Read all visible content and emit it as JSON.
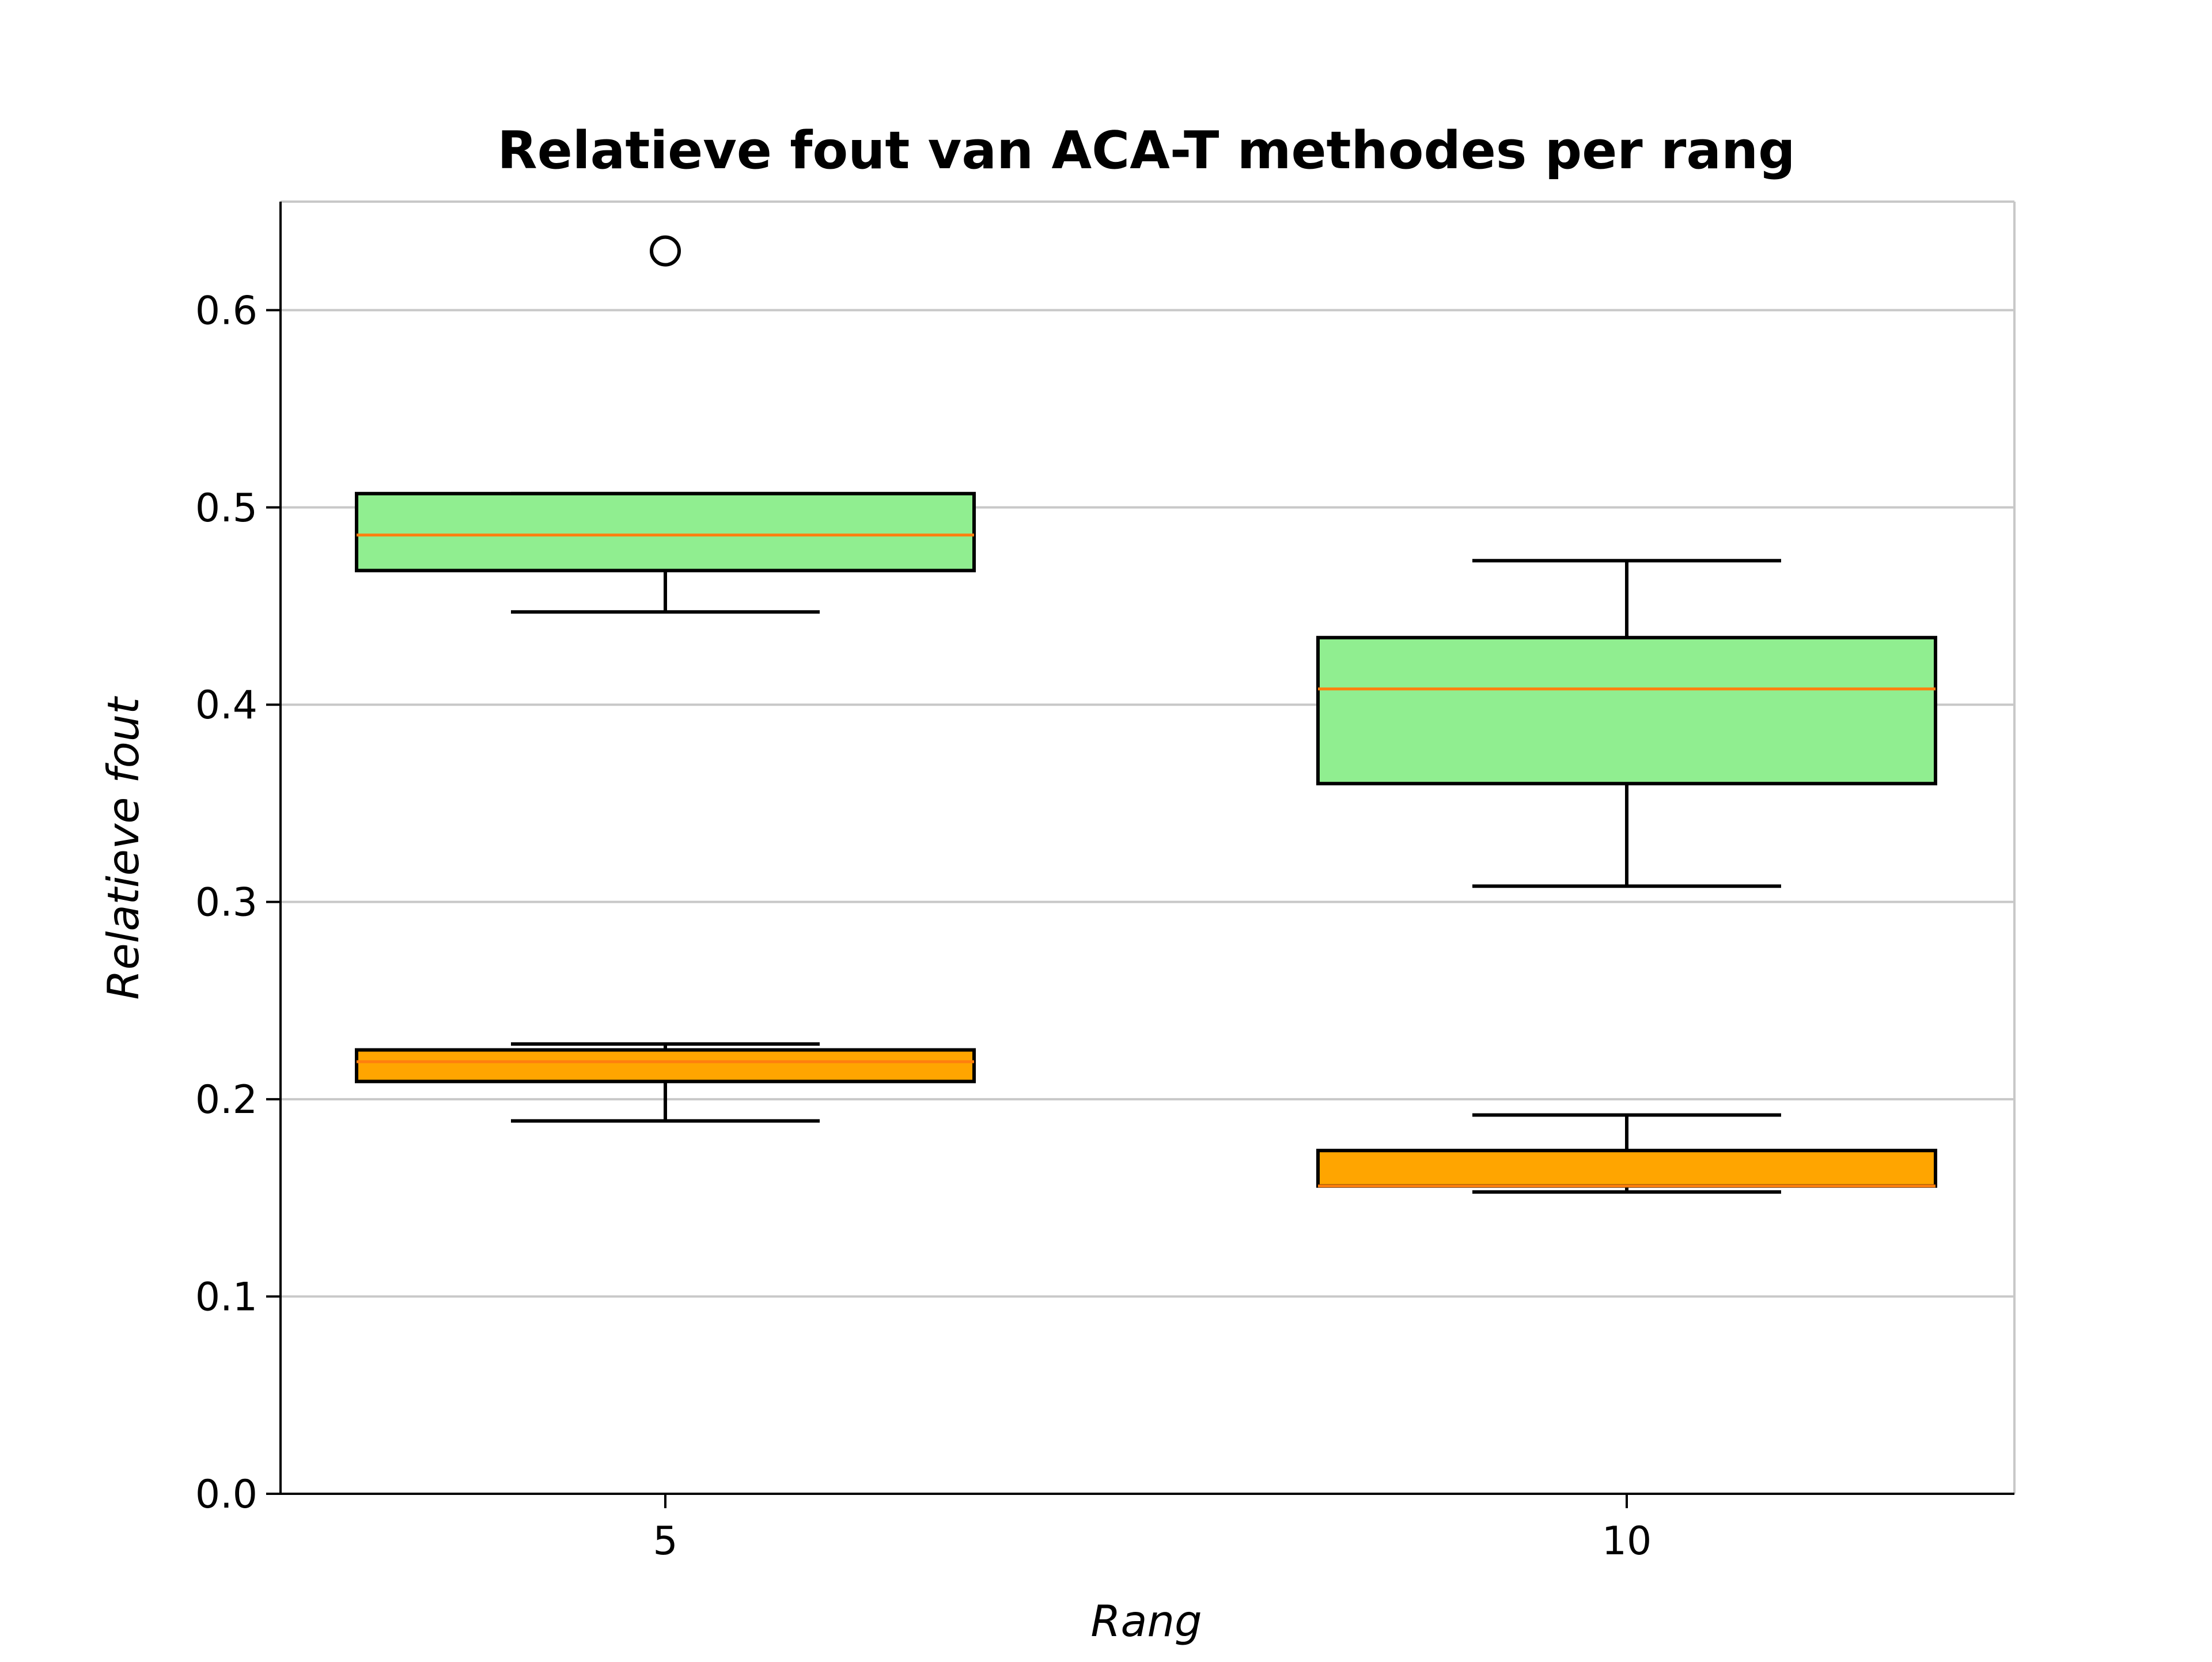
{
  "chart_data": {
    "type": "boxplot",
    "title": "Relatieve fout van ACA-T methodes per rang",
    "xlabel": "Rang",
    "ylabel": "Relatieve fout",
    "categories": [
      "5",
      "10"
    ],
    "ylim": [
      0.0,
      0.655
    ],
    "yticks": [
      "0.0",
      "0.1",
      "0.2",
      "0.3",
      "0.4",
      "0.5",
      "0.6"
    ],
    "grid": "horizontal",
    "series": [
      {
        "color": "#90ee90",
        "median_color": "#ff7f0e",
        "boxes": [
          {
            "category": "5",
            "whisker_low": 0.447,
            "q1": 0.468,
            "median": 0.486,
            "q3": 0.507,
            "whisker_high": 0.507,
            "outliers": [
              0.63
            ]
          },
          {
            "category": "10",
            "whisker_low": 0.308,
            "q1": 0.36,
            "median": 0.408,
            "q3": 0.434,
            "whisker_high": 0.473,
            "outliers": []
          }
        ]
      },
      {
        "color": "#ffa500",
        "median_color": "#ff7f0e",
        "boxes": [
          {
            "category": "5",
            "whisker_low": 0.189,
            "q1": 0.209,
            "median": 0.219,
            "q3": 0.225,
            "whisker_high": 0.228,
            "outliers": []
          },
          {
            "category": "10",
            "whisker_low": 0.153,
            "q1": 0.156,
            "median": 0.156,
            "q3": 0.174,
            "whisker_high": 0.192,
            "outliers": []
          }
        ]
      }
    ]
  }
}
